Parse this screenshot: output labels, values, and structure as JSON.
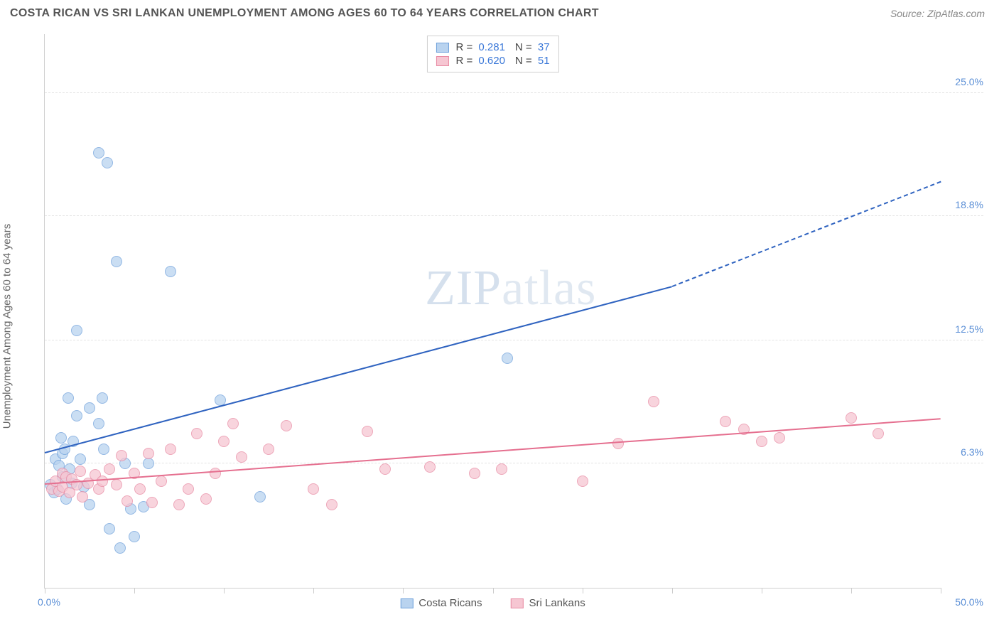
{
  "header": {
    "title": "COSTA RICAN VS SRI LANKAN UNEMPLOYMENT AMONG AGES 60 TO 64 YEARS CORRELATION CHART",
    "source_prefix": "Source: ",
    "source_name": "ZipAtlas.com"
  },
  "axes": {
    "y_label": "Unemployment Among Ages 60 to 64 years",
    "x_min_label": "0.0%",
    "x_max_label": "50.0%",
    "x_range": [
      0,
      50
    ],
    "y_range": [
      0,
      28
    ],
    "y_ticks": [
      {
        "v": 6.3,
        "label": "6.3%"
      },
      {
        "v": 12.5,
        "label": "12.5%"
      },
      {
        "v": 18.8,
        "label": "18.8%"
      },
      {
        "v": 25.0,
        "label": "25.0%"
      }
    ],
    "x_tick_step": 5,
    "grid_color": "#e3e3e3",
    "axis_color": "#d0d0d0",
    "tick_label_color": "#5b8fd6",
    "axis_label_color": "#666666",
    "axis_label_fontsize": 15
  },
  "watermark": {
    "text_bold": "ZIP",
    "text_thin": "atlas"
  },
  "legend_top": {
    "rows": [
      {
        "swatch_fill": "#b9d3ef",
        "swatch_stroke": "#6fa1db",
        "r_label": "R =",
        "r_value": "0.281",
        "n_label": "N =",
        "n_value": "37"
      },
      {
        "swatch_fill": "#f6c6d2",
        "swatch_stroke": "#e88aa3",
        "r_label": "R =",
        "r_value": "0.620",
        "n_label": "N =",
        "n_value": "51"
      }
    ]
  },
  "legend_bottom": {
    "items": [
      {
        "swatch_fill": "#b9d3ef",
        "swatch_stroke": "#6fa1db",
        "label": "Costa Ricans"
      },
      {
        "swatch_fill": "#f6c6d2",
        "swatch_stroke": "#e88aa3",
        "label": "Sri Lankans"
      }
    ]
  },
  "series": [
    {
      "name": "costa_ricans",
      "point_fill": "#b9d3ef",
      "point_stroke": "#6fa1db",
      "point_radius": 8,
      "trend_color": "#2f63c0",
      "trend_width": 2.5,
      "trend": {
        "x1": 0,
        "y1": 6.8,
        "x2": 35,
        "y2": 15.2,
        "x2_ext": 50,
        "y2_ext": 20.5
      },
      "points": [
        [
          0.3,
          5.2
        ],
        [
          0.5,
          4.8
        ],
        [
          0.6,
          6.5
        ],
        [
          0.7,
          5.0
        ],
        [
          0.8,
          6.2
        ],
        [
          0.9,
          7.6
        ],
        [
          1.0,
          5.6
        ],
        [
          1.0,
          6.8
        ],
        [
          1.1,
          7.0
        ],
        [
          1.2,
          4.5
        ],
        [
          1.3,
          9.6
        ],
        [
          1.4,
          6.0
        ],
        [
          1.5,
          5.3
        ],
        [
          1.6,
          7.4
        ],
        [
          1.8,
          8.7
        ],
        [
          1.8,
          13.0
        ],
        [
          2.0,
          6.5
        ],
        [
          2.2,
          5.1
        ],
        [
          2.5,
          4.2
        ],
        [
          2.5,
          9.1
        ],
        [
          3.0,
          22.0
        ],
        [
          3.0,
          8.3
        ],
        [
          3.2,
          9.6
        ],
        [
          3.3,
          7.0
        ],
        [
          3.5,
          21.5
        ],
        [
          3.6,
          3.0
        ],
        [
          4.0,
          16.5
        ],
        [
          4.2,
          2.0
        ],
        [
          4.5,
          6.3
        ],
        [
          4.8,
          4.0
        ],
        [
          5.0,
          2.6
        ],
        [
          5.5,
          4.1
        ],
        [
          7.0,
          16.0
        ],
        [
          5.8,
          6.3
        ],
        [
          9.8,
          9.5
        ],
        [
          12.0,
          4.6
        ],
        [
          25.8,
          11.6
        ]
      ]
    },
    {
      "name": "sri_lankans",
      "point_fill": "#f6c6d2",
      "point_stroke": "#e88aa3",
      "point_radius": 8,
      "trend_color": "#e56f8f",
      "trend_width": 2.5,
      "trend": {
        "x1": 0,
        "y1": 5.2,
        "x2": 50,
        "y2": 8.5,
        "x2_ext": 50,
        "y2_ext": 8.5
      },
      "points": [
        [
          0.4,
          5.0
        ],
        [
          0.6,
          5.4
        ],
        [
          0.8,
          4.9
        ],
        [
          1.0,
          5.8
        ],
        [
          1.0,
          5.1
        ],
        [
          1.2,
          5.6
        ],
        [
          1.4,
          4.8
        ],
        [
          1.5,
          5.5
        ],
        [
          1.8,
          5.2
        ],
        [
          2.0,
          5.9
        ],
        [
          2.1,
          4.6
        ],
        [
          2.4,
          5.3
        ],
        [
          2.8,
          5.7
        ],
        [
          3.0,
          5.0
        ],
        [
          3.2,
          5.4
        ],
        [
          3.6,
          6.0
        ],
        [
          4.0,
          5.2
        ],
        [
          4.3,
          6.7
        ],
        [
          4.6,
          4.4
        ],
        [
          5.0,
          5.8
        ],
        [
          5.3,
          5.0
        ],
        [
          5.8,
          6.8
        ],
        [
          6.0,
          4.3
        ],
        [
          6.5,
          5.4
        ],
        [
          7.0,
          7.0
        ],
        [
          7.5,
          4.2
        ],
        [
          8.0,
          5.0
        ],
        [
          8.5,
          7.8
        ],
        [
          9.0,
          4.5
        ],
        [
          9.5,
          5.8
        ],
        [
          10.0,
          7.4
        ],
        [
          10.5,
          8.3
        ],
        [
          11.0,
          6.6
        ],
        [
          12.5,
          7.0
        ],
        [
          13.5,
          8.2
        ],
        [
          15.0,
          5.0
        ],
        [
          16.0,
          4.2
        ],
        [
          18.0,
          7.9
        ],
        [
          19.0,
          6.0
        ],
        [
          21.5,
          6.1
        ],
        [
          24.0,
          5.8
        ],
        [
          25.5,
          6.0
        ],
        [
          30.0,
          5.4
        ],
        [
          32.0,
          7.3
        ],
        [
          34.0,
          9.4
        ],
        [
          38.0,
          8.4
        ],
        [
          39.0,
          8.0
        ],
        [
          40.0,
          7.4
        ],
        [
          41.0,
          7.6
        ],
        [
          45.0,
          8.6
        ],
        [
          46.5,
          7.8
        ]
      ]
    }
  ],
  "style": {
    "title_color": "#555555",
    "title_fontsize": 16,
    "source_color": "#888888",
    "background": "#ffffff",
    "point_opacity": 0.75
  }
}
